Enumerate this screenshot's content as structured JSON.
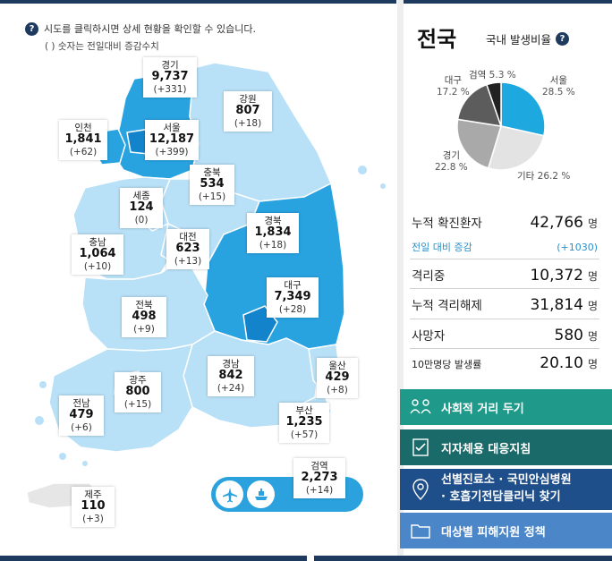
{
  "help": {
    "text": "시도를 클릭하시면 상세 현황을 확인할 수 있습니다.",
    "subtext": "( ) 숫자는 전일대비 증감수치"
  },
  "regions": [
    {
      "id": "gyeonggi",
      "name": "경기",
      "count": "9,737",
      "diff": "(+331)"
    },
    {
      "id": "gangwon",
      "name": "강원",
      "count": "807",
      "diff": "(+18)"
    },
    {
      "id": "incheon",
      "name": "인천",
      "count": "1,841",
      "diff": "(+62)"
    },
    {
      "id": "seoul",
      "name": "서울",
      "count": "12,187",
      "diff": "(+399)"
    },
    {
      "id": "chungbuk",
      "name": "충북",
      "count": "534",
      "diff": "(+15)"
    },
    {
      "id": "sejong",
      "name": "세종",
      "count": "124",
      "diff": "(0)"
    },
    {
      "id": "daejeon",
      "name": "대전",
      "count": "623",
      "diff": "(+13)"
    },
    {
      "id": "gyeongbuk",
      "name": "경북",
      "count": "1,834",
      "diff": "(+18)"
    },
    {
      "id": "chungnam",
      "name": "충남",
      "count": "1,064",
      "diff": "(+10)"
    },
    {
      "id": "daegu",
      "name": "대구",
      "count": "7,349",
      "diff": "(+28)"
    },
    {
      "id": "jeonbuk",
      "name": "전북",
      "count": "498",
      "diff": "(+9)"
    },
    {
      "id": "gyeongnam",
      "name": "경남",
      "count": "842",
      "diff": "(+24)"
    },
    {
      "id": "ulsan",
      "name": "울산",
      "count": "429",
      "diff": "(+8)"
    },
    {
      "id": "gwangju",
      "name": "광주",
      "count": "800",
      "diff": "(+15)"
    },
    {
      "id": "jeonnam",
      "name": "전남",
      "count": "479",
      "diff": "(+6)"
    },
    {
      "id": "busan",
      "name": "부산",
      "count": "1,235",
      "diff": "(+57)"
    },
    {
      "id": "quarantine",
      "name": "검역",
      "count": "2,273",
      "diff": "(+14)"
    },
    {
      "id": "jeju",
      "name": "제주",
      "count": "110",
      "diff": "(+3)"
    }
  ],
  "national": {
    "title": "전국",
    "rate_title": "국내 발생비율",
    "pie_labels": [
      {
        "name": "검역",
        "pct": "5.3 %"
      },
      {
        "name": "서울",
        "pct": "28.5 %"
      },
      {
        "name": "대구",
        "pct": "17.2 %"
      },
      {
        "name": "경기",
        "pct": "22.8 %"
      },
      {
        "name": "기타",
        "pct": "26.2 %"
      }
    ],
    "stats": [
      {
        "label": "누적 확진환자",
        "value": "42,766",
        "unit": "명"
      },
      {
        "label": "전일 대비 증감",
        "value": "(+1030)",
        "unit": ""
      },
      {
        "label": "격리중",
        "value": "10,372",
        "unit": "명"
      },
      {
        "label": "누적 격리해제",
        "value": "31,814",
        "unit": "명"
      },
      {
        "label": "사망자",
        "value": "580",
        "unit": "명"
      },
      {
        "label": "10만명당 발생률",
        "value": "20.10",
        "unit": "명"
      }
    ]
  },
  "buttons": [
    {
      "label": "사회적 거리 두기"
    },
    {
      "label": "지자체용 대응지침"
    },
    {
      "label_line1": "선별진료소 · 국민안심병원",
      "label_line2": "· 호흡기전담클리닉 찾기"
    },
    {
      "label": "대상별 피해지원 정책"
    }
  ],
  "colors": {
    "navy": "#1f3a5f",
    "map_light": "#b8e0f7",
    "map_mid": "#29a3e0",
    "map_dark": "#1384cc",
    "pie_seoul": "#1ea8e0",
    "pie_other": "#e3e3e3",
    "pie_gyeonggi": "#a9a9a9",
    "pie_daegu": "#5c5c5c",
    "pie_quarantine": "#222222",
    "btn1": "#1f9a8a",
    "btn2": "#1a6a6a",
    "btn3": "#1f4f8a",
    "btn4": "#4a86c8"
  }
}
